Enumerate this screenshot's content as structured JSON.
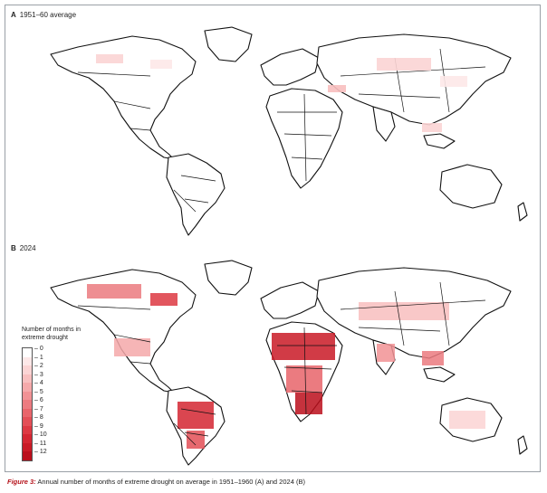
{
  "panels": [
    {
      "letter": "A",
      "title": "1951–60 average"
    },
    {
      "letter": "B",
      "title": "2024"
    }
  ],
  "legend": {
    "title_line1": "Number of months in",
    "title_line2": "extreme drought",
    "levels": [
      "0",
      "1",
      "2",
      "3",
      "4",
      "5",
      "6",
      "7",
      "8",
      "9",
      "10",
      "11",
      "12"
    ],
    "colors": [
      "#ffffff",
      "#fde8e8",
      "#fbd4d4",
      "#f8bfbf",
      "#f5a9aa",
      "#f19295",
      "#ec7b80",
      "#e8656b",
      "#e34f57",
      "#dd3943",
      "#d42632",
      "#c91a26",
      "#bb0f1c"
    ]
  },
  "caption": {
    "label": "Figure 3:",
    "text": "Annual number of months of extreme drought on average in 1951–1960 (A) and 2024 (B)"
  },
  "colors": {
    "land": "#ffffff",
    "border": "#111111",
    "frame": "#9aa0a6",
    "accent": "#b5121b"
  }
}
